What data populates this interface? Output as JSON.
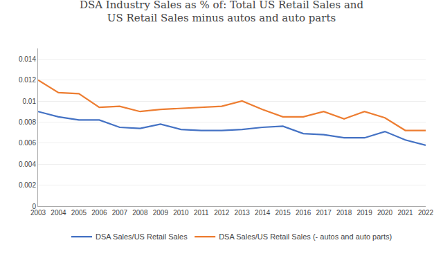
{
  "chart_data": {
    "type": "line",
    "title": "DSA Industry Sales as % of: Total US Retail Sales and\nUS Retail Sales minus autos and auto parts",
    "x": [
      2003,
      2004,
      2005,
      2006,
      2007,
      2008,
      2009,
      2010,
      2011,
      2012,
      2013,
      2014,
      2015,
      2016,
      2017,
      2018,
      2019,
      2020,
      2021,
      2022
    ],
    "series": [
      {
        "name": "DSA Sales/US Retail Sales",
        "color": "#4472C4",
        "values": [
          0.009,
          0.0085,
          0.0082,
          0.0082,
          0.0075,
          0.0074,
          0.0078,
          0.0073,
          0.0072,
          0.0072,
          0.0073,
          0.0075,
          0.0076,
          0.0069,
          0.0068,
          0.0065,
          0.0065,
          0.0071,
          0.0063,
          0.0058
        ]
      },
      {
        "name": "DSA Sales/US Retail Sales (- autos and auto parts)",
        "color": "#ED7D31",
        "values": [
          0.012,
          0.0108,
          0.0107,
          0.0094,
          0.0095,
          0.009,
          0.0092,
          0.0093,
          0.0094,
          0.0095,
          0.01,
          0.0092,
          0.0085,
          0.0085,
          0.009,
          0.0083,
          0.009,
          0.0084,
          0.0072,
          0.0072
        ]
      }
    ],
    "xlim": [
      2003,
      2022
    ],
    "xticks": [
      2003,
      2004,
      2005,
      2006,
      2007,
      2008,
      2009,
      2010,
      2011,
      2012,
      2013,
      2014,
      2015,
      2016,
      2017,
      2018,
      2019,
      2020,
      2021,
      2022
    ],
    "ylim": [
      0,
      0.015
    ],
    "yticks": [
      0,
      0.002,
      0.004,
      0.006,
      0.008,
      0.01,
      0.012,
      0.014
    ],
    "grid": true,
    "legend": "bottom"
  }
}
